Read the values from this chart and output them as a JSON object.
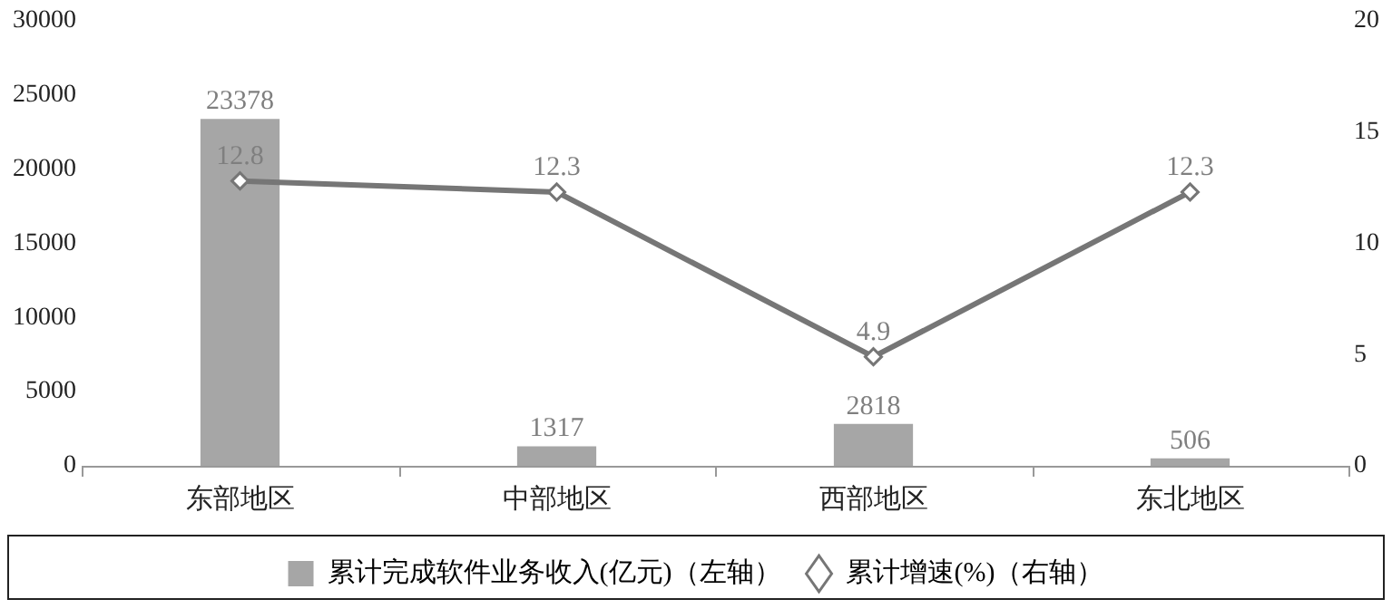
{
  "chart_data": {
    "type": "bar",
    "categories": [
      "东部地区",
      "中部地区",
      "西部地区",
      "东北地区"
    ],
    "series": [
      {
        "name": "累计完成软件业务收入(亿元)（左轴）",
        "type": "bar",
        "color": "#a6a6a6",
        "values": [
          23378,
          1317,
          2818,
          506
        ]
      },
      {
        "name": "累计增速(%)（右轴）",
        "type": "line",
        "axis": "y2",
        "color": "#767676",
        "values": [
          12.8,
          12.3,
          4.9,
          12.3
        ]
      }
    ],
    "ylim": [
      0,
      30000
    ],
    "yticks": [
      0,
      5000,
      10000,
      15000,
      20000,
      25000,
      30000
    ],
    "y2lim": [
      0,
      20
    ],
    "y2ticks": [
      0,
      5,
      10,
      15,
      20
    ],
    "data_labels": true,
    "grid": false,
    "legend": "bottom",
    "marker": "diamond",
    "line_style": "solid"
  }
}
